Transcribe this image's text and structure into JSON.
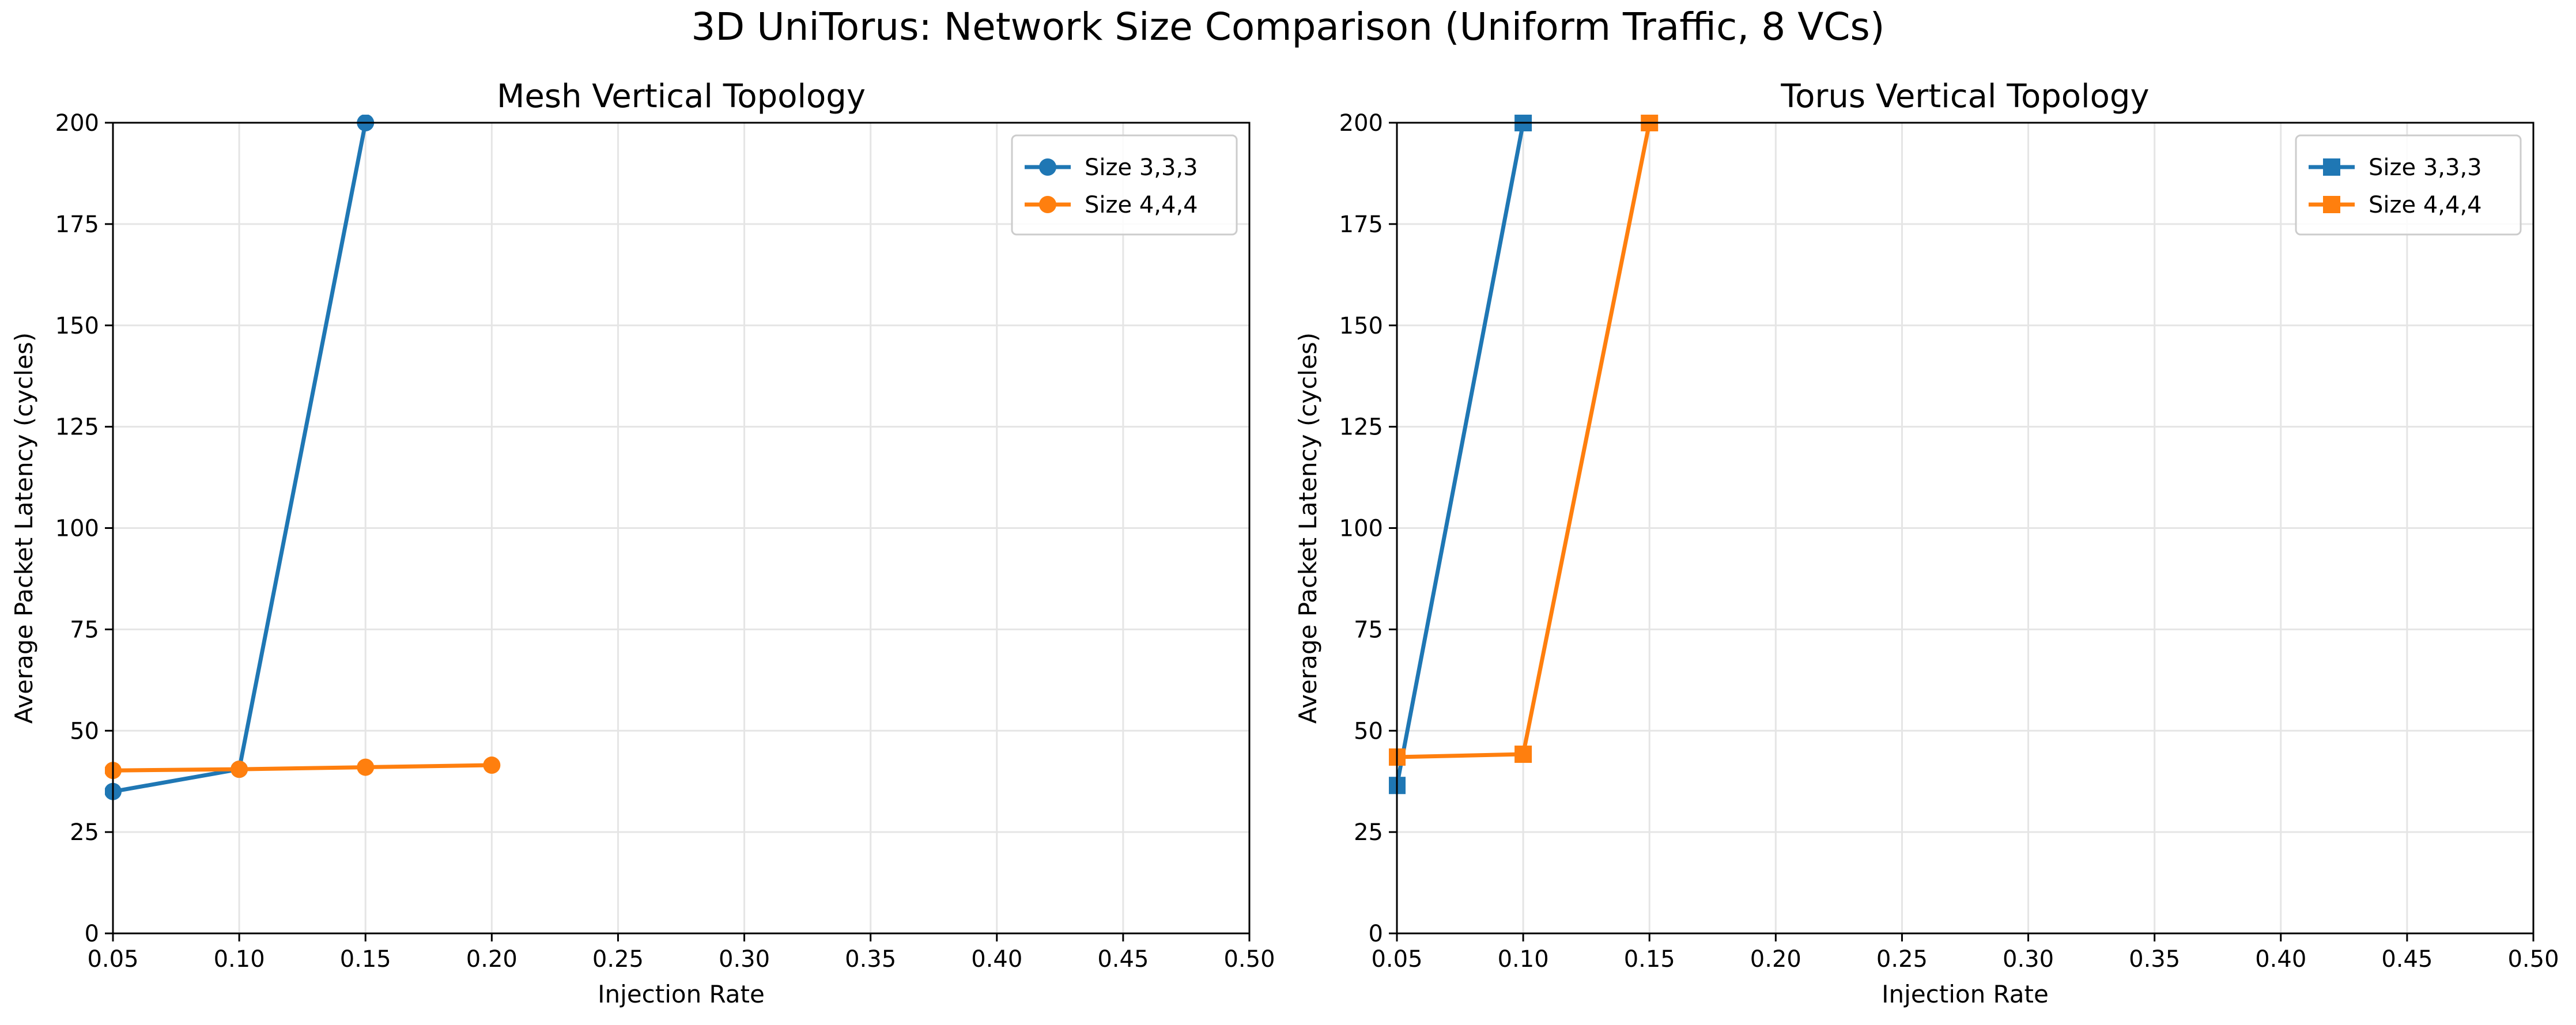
{
  "figure": {
    "suptitle": "3D UniTorus: Network Size Comparison (Uniform Traffic, 8 VCs)"
  },
  "colors": {
    "blue": "#1f77b4",
    "orange": "#ff7f0e",
    "grid": "#e5e5e5"
  },
  "chart_data": [
    {
      "type": "line",
      "title": "Mesh Vertical Topology",
      "xlabel": "Injection Rate",
      "ylabel": "Average Packet Latency (cycles)",
      "xlim": [
        0.05,
        0.5
      ],
      "ylim": [
        0,
        200
      ],
      "xticks": [
        "0.05",
        "0.10",
        "0.15",
        "0.20",
        "0.25",
        "0.30",
        "0.35",
        "0.40",
        "0.45",
        "0.50"
      ],
      "yticks": [
        "0",
        "25",
        "50",
        "75",
        "100",
        "125",
        "150",
        "175",
        "200"
      ],
      "grid": true,
      "legend_position": "top-right",
      "marker": "circle",
      "series": [
        {
          "name": "Size 3,3,3",
          "color": "#1f77b4",
          "x": [
            0.05,
            0.1,
            0.15
          ],
          "y": [
            35,
            40.5,
            200
          ]
        },
        {
          "name": "Size 4,4,4",
          "color": "#ff7f0e",
          "x": [
            0.05,
            0.1,
            0.15,
            0.2
          ],
          "y": [
            40.2,
            40.5,
            41,
            41.5
          ]
        }
      ]
    },
    {
      "type": "line",
      "title": "Torus Vertical Topology",
      "xlabel": "Injection Rate",
      "ylabel": "Average Packet Latency (cycles)",
      "xlim": [
        0.05,
        0.5
      ],
      "ylim": [
        0,
        200
      ],
      "xticks": [
        "0.05",
        "0.10",
        "0.15",
        "0.20",
        "0.25",
        "0.30",
        "0.35",
        "0.40",
        "0.45",
        "0.50"
      ],
      "yticks": [
        "0",
        "25",
        "50",
        "75",
        "100",
        "125",
        "150",
        "175",
        "200"
      ],
      "grid": true,
      "legend_position": "top-right",
      "marker": "square",
      "series": [
        {
          "name": "Size 3,3,3",
          "color": "#1f77b4",
          "x": [
            0.05,
            0.1
          ],
          "y": [
            36.5,
            200
          ]
        },
        {
          "name": "Size 4,4,4",
          "color": "#ff7f0e",
          "x": [
            0.05,
            0.1,
            0.15
          ],
          "y": [
            43.5,
            44.2,
            200
          ]
        }
      ]
    }
  ]
}
